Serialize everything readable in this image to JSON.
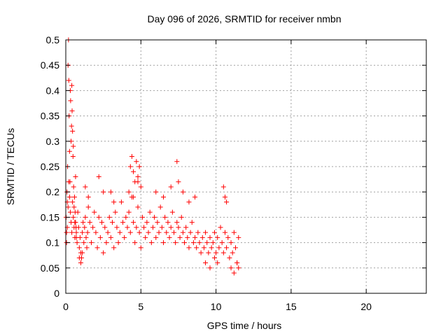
{
  "chart_data": {
    "type": "scatter",
    "title": "Day 096 of 2026, SRMTID for receiver nmbn",
    "xlabel": "GPS time / hours",
    "ylabel": "SRMTID / TECUs",
    "xlim": [
      0,
      24
    ],
    "ylim": [
      0,
      0.5
    ],
    "xticks": [
      0,
      5,
      10,
      15,
      20
    ],
    "xtick_labels": [
      "0",
      "5",
      "10",
      "15",
      "20"
    ],
    "yticks": [
      0,
      0.05,
      0.1,
      0.15,
      0.2,
      0.25,
      0.3,
      0.35,
      0.4,
      0.45,
      0.5
    ],
    "ytick_labels": [
      "0",
      "0.05",
      "0.1",
      "0.15",
      "0.2",
      "0.25",
      "0.3",
      "0.35",
      "0.4",
      "0.45",
      "0.5"
    ],
    "grid": true,
    "marker": "plus",
    "color": "#ff0000",
    "series": [
      {
        "x": [
          0.02,
          0.05,
          0.08,
          0.1,
          0.12,
          0.15,
          0.18,
          0.2,
          0.22,
          0.25,
          0.28,
          0.3,
          0.32,
          0.35,
          0.38,
          0.4,
          0.42,
          0.45,
          0.48,
          0.5,
          0.52,
          0.55,
          0.58,
          0.6,
          0.62,
          0.65,
          0.68,
          0.7,
          0.05,
          0.1,
          0.15,
          0.2,
          0.25,
          0.3,
          0.35,
          0.4,
          0.45,
          0.5,
          0.55,
          0.6,
          0.65,
          0.7,
          0.75,
          0.8,
          0.85,
          0.9,
          0.95,
          1.0,
          1.05,
          1.1,
          1.15,
          1.2,
          1.25,
          1.3,
          1.35,
          1.4,
          1.45,
          1.5,
          1.6,
          1.7,
          1.8,
          1.9,
          2.0,
          2.1,
          2.2,
          2.3,
          2.4,
          2.5,
          2.6,
          2.7,
          2.8,
          2.9,
          3.0,
          3.1,
          3.2,
          3.3,
          3.4,
          3.5,
          3.6,
          3.7,
          3.8,
          3.9,
          4.0,
          4.1,
          4.2,
          4.3,
          4.4,
          4.5,
          4.6,
          4.7,
          4.8,
          4.9,
          5.0,
          5.1,
          5.2,
          5.3,
          5.4,
          5.5,
          5.6,
          5.7,
          5.8,
          5.9,
          6.0,
          6.1,
          6.2,
          6.3,
          6.4,
          6.5,
          6.6,
          6.7,
          6.8,
          6.9,
          7.0,
          7.1,
          7.2,
          7.3,
          7.4,
          7.5,
          7.6,
          7.7,
          7.8,
          7.9,
          8.0,
          8.1,
          8.2,
          8.3,
          8.4,
          8.5,
          8.6,
          8.7,
          8.8,
          8.9,
          9.0,
          9.1,
          9.2,
          9.3,
          9.4,
          9.5,
          9.6,
          9.7,
          9.8,
          9.9,
          10.0,
          10.1,
          10.2,
          10.3,
          10.4,
          10.5,
          10.6,
          10.7,
          10.8,
          10.9,
          11.0,
          11.1,
          11.2,
          11.3,
          11.4,
          11.5,
          4.3,
          4.4,
          4.5,
          4.6,
          4.7,
          4.8,
          4.9,
          5.0,
          4.2,
          4.5,
          4.8,
          6.0,
          6.5,
          7.0,
          7.4,
          7.5,
          7.8,
          8.2,
          8.6,
          10.5,
          10.6,
          10.7,
          2.2,
          2.5,
          1.3,
          1.5,
          3.0,
          3.2,
          0.9,
          1.0,
          1.1,
          11.0,
          11.2,
          11.4,
          11.5,
          9.3,
          9.6,
          9.9,
          10.1
        ],
        "y": [
          0.15,
          0.12,
          0.2,
          0.18,
          0.25,
          0.45,
          0.5,
          0.42,
          0.35,
          0.28,
          0.22,
          0.4,
          0.38,
          0.3,
          0.33,
          0.41,
          0.36,
          0.32,
          0.27,
          0.29,
          0.21,
          0.17,
          0.19,
          0.14,
          0.16,
          0.23,
          0.13,
          0.11,
          0.1,
          0.13,
          0.17,
          0.22,
          0.19,
          0.16,
          0.14,
          0.12,
          0.18,
          0.15,
          0.13,
          0.11,
          0.14,
          0.12,
          0.1,
          0.16,
          0.13,
          0.09,
          0.11,
          0.08,
          0.07,
          0.12,
          0.14,
          0.1,
          0.13,
          0.15,
          0.11,
          0.09,
          0.12,
          0.17,
          0.14,
          0.1,
          0.13,
          0.16,
          0.12,
          0.09,
          0.15,
          0.11,
          0.14,
          0.08,
          0.13,
          0.1,
          0.12,
          0.15,
          0.11,
          0.14,
          0.09,
          0.16,
          0.13,
          0.1,
          0.12,
          0.18,
          0.14,
          0.11,
          0.15,
          0.13,
          0.16,
          0.12,
          0.19,
          0.14,
          0.1,
          0.13,
          0.17,
          0.12,
          0.09,
          0.15,
          0.13,
          0.11,
          0.14,
          0.12,
          0.16,
          0.1,
          0.13,
          0.15,
          0.11,
          0.14,
          0.12,
          0.17,
          0.13,
          0.1,
          0.15,
          0.12,
          0.14,
          0.11,
          0.13,
          0.16,
          0.12,
          0.1,
          0.14,
          0.13,
          0.11,
          0.15,
          0.12,
          0.1,
          0.13,
          0.11,
          0.09,
          0.12,
          0.14,
          0.1,
          0.11,
          0.09,
          0.12,
          0.1,
          0.08,
          0.11,
          0.09,
          0.12,
          0.1,
          0.08,
          0.11,
          0.09,
          0.1,
          0.12,
          0.08,
          0.11,
          0.09,
          0.13,
          0.1,
          0.08,
          0.12,
          0.09,
          0.11,
          0.07,
          0.1,
          0.08,
          0.12,
          0.09,
          0.06,
          0.11,
          0.25,
          0.27,
          0.24,
          0.22,
          0.26,
          0.23,
          0.25,
          0.21,
          0.2,
          0.19,
          0.22,
          0.2,
          0.19,
          0.21,
          0.26,
          0.22,
          0.2,
          0.18,
          0.19,
          0.21,
          0.19,
          0.18,
          0.23,
          0.2,
          0.21,
          0.19,
          0.2,
          0.18,
          0.07,
          0.06,
          0.08,
          0.05,
          0.04,
          0.06,
          0.05,
          0.06,
          0.05,
          0.07,
          0.06
        ]
      }
    ]
  }
}
